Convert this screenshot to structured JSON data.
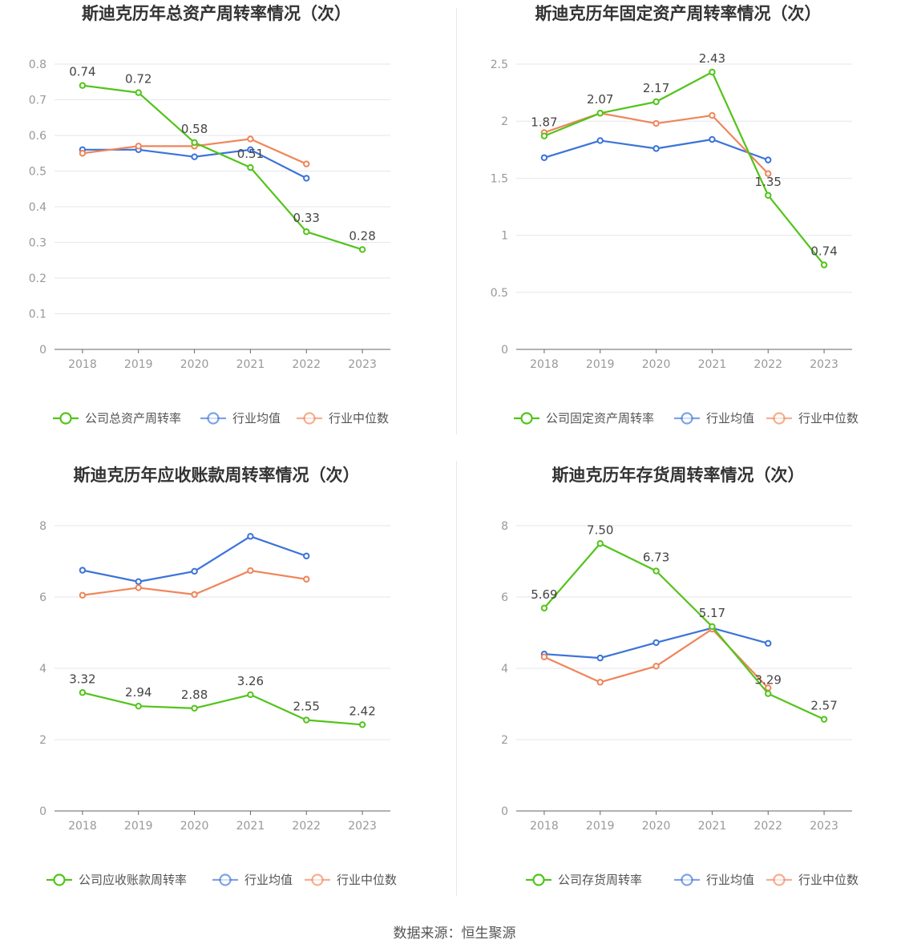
{
  "footer": {
    "source": "数据来源：恒生聚源"
  },
  "colors": {
    "company": "#52c41a",
    "average": "#3b73d9",
    "median": "#f0855a",
    "grid": "#e6e6ee",
    "axis": "#666666",
    "text": "#444444",
    "tick": "#999999"
  },
  "chart_data": [
    {
      "type": "line",
      "title": "斯迪克历年总资产周转率情况（次）",
      "categories": [
        "2018",
        "2019",
        "2020",
        "2021",
        "2022",
        "2023"
      ],
      "yticks": [
        "0",
        "0.1",
        "0.2",
        "0.3",
        "0.4",
        "0.5",
        "0.6",
        "0.7",
        "0.8"
      ],
      "ylim": [
        0,
        0.8
      ],
      "series": [
        {
          "name": "公司总资产周转率",
          "role": "company",
          "values": [
            0.74,
            0.72,
            0.58,
            0.51,
            0.33,
            0.28
          ],
          "labels": [
            "0.74",
            "0.72",
            "0.58",
            "0.51",
            "0.33",
            "0.28"
          ]
        },
        {
          "name": "行业均值",
          "role": "average",
          "values": [
            0.56,
            0.56,
            0.54,
            0.56,
            0.48,
            null
          ]
        },
        {
          "name": "行业中位数",
          "role": "median",
          "values": [
            0.55,
            0.57,
            0.57,
            0.59,
            0.52,
            null
          ]
        }
      ]
    },
    {
      "type": "line",
      "title": "斯迪克历年固定资产周转率情况（次）",
      "categories": [
        "2018",
        "2019",
        "2020",
        "2021",
        "2022",
        "2023"
      ],
      "yticks": [
        "0",
        "0.5",
        "1",
        "1.5",
        "2",
        "2.5"
      ],
      "ylim": [
        0,
        2.5
      ],
      "series": [
        {
          "name": "公司固定资产周转率",
          "role": "company",
          "values": [
            1.87,
            2.07,
            2.17,
            2.43,
            1.35,
            0.74
          ],
          "labels": [
            "1.87",
            "2.07",
            "2.17",
            "2.43",
            "1.35",
            "0.74"
          ]
        },
        {
          "name": "行业均值",
          "role": "average",
          "values": [
            1.68,
            1.83,
            1.76,
            1.84,
            1.66,
            null
          ]
        },
        {
          "name": "行业中位数",
          "role": "median",
          "values": [
            1.9,
            2.07,
            1.98,
            2.05,
            1.54,
            null
          ]
        }
      ]
    },
    {
      "type": "line",
      "title": "斯迪克历年应收账款周转率情况（次）",
      "categories": [
        "2018",
        "2019",
        "2020",
        "2021",
        "2022",
        "2023"
      ],
      "yticks": [
        "0",
        "2",
        "4",
        "6",
        "8"
      ],
      "ylim": [
        0,
        8
      ],
      "series": [
        {
          "name": "公司应收账款周转率",
          "role": "company",
          "values": [
            3.32,
            2.94,
            2.88,
            3.26,
            2.55,
            2.42
          ],
          "labels": [
            "3.32",
            "2.94",
            "2.88",
            "3.26",
            "2.55",
            "2.42"
          ]
        },
        {
          "name": "行业均值",
          "role": "average",
          "values": [
            6.75,
            6.43,
            6.72,
            7.7,
            7.15,
            null
          ]
        },
        {
          "name": "行业中位数",
          "role": "median",
          "values": [
            6.05,
            6.26,
            6.07,
            6.74,
            6.5,
            null
          ]
        }
      ]
    },
    {
      "type": "line",
      "title": "斯迪克历年存货周转率情况（次）",
      "categories": [
        "2018",
        "2019",
        "2020",
        "2021",
        "2022",
        "2023"
      ],
      "yticks": [
        "0",
        "2",
        "4",
        "6",
        "8"
      ],
      "ylim": [
        0,
        8
      ],
      "series": [
        {
          "name": "公司存货周转率",
          "role": "company",
          "values": [
            5.69,
            7.5,
            6.73,
            5.17,
            3.29,
            2.57
          ],
          "labels": [
            "5.69",
            "7.50",
            "6.73",
            "5.17",
            "3.29",
            "2.57"
          ]
        },
        {
          "name": "行业均值",
          "role": "average",
          "values": [
            4.4,
            4.29,
            4.72,
            5.13,
            4.7,
            null
          ]
        },
        {
          "name": "行业中位数",
          "role": "median",
          "values": [
            4.32,
            3.61,
            4.06,
            5.1,
            3.45,
            null
          ]
        }
      ]
    }
  ]
}
